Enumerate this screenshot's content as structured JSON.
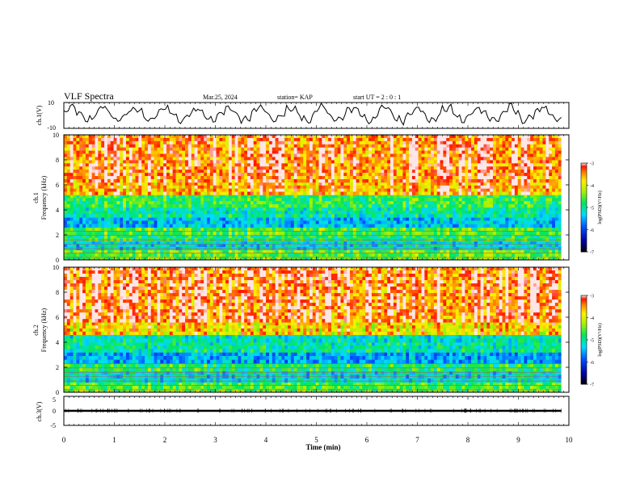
{
  "header": {
    "title": "VLF Spectra",
    "date": "Mar.25, 2024",
    "station": "station= KAP",
    "start": "start UT = 2 : 0 : 1"
  },
  "chart_data": [
    {
      "type": "line",
      "name": "ch1-waveform",
      "ylabel": "ch.1(V)",
      "ylim": [
        -10,
        10
      ],
      "y_ticks": [
        "10",
        "-10"
      ],
      "xlim": [
        0,
        10
      ],
      "x_end": 9.85,
      "x_samples": 230,
      "wave_params": {
        "base": 1.0,
        "amp1": 5.0,
        "period1": 0.62,
        "amp2": 2.0,
        "period2": 0.17,
        "noise": 2.2
      }
    },
    {
      "type": "heatmap",
      "name": "ch1-spectrogram",
      "ylabel_lines": [
        "ch.1",
        "Frequency (kHz)"
      ],
      "ylim": [
        0,
        10
      ],
      "y_ticks": [
        "0",
        "2",
        "4",
        "6",
        "8",
        "10"
      ],
      "xlim": [
        0,
        10
      ],
      "x_end": 9.85,
      "colorbar": {
        "label": "log(PSD)(V²/Hz)",
        "ticks": [
          "-3",
          "-4",
          "-5",
          "-6",
          "-7"
        ],
        "range": [
          -7,
          -3
        ]
      },
      "bands": [
        {
          "f0": 0.0,
          "f1": 0.8,
          "level": -4.6
        },
        {
          "f0": 0.8,
          "f1": 1.5,
          "level": -5.3
        },
        {
          "f0": 1.5,
          "f1": 2.0,
          "level": -4.9
        },
        {
          "f0": 2.0,
          "f1": 2.6,
          "level": -4.7
        },
        {
          "f0": 2.6,
          "f1": 3.4,
          "level": -5.5
        },
        {
          "f0": 3.4,
          "f1": 4.2,
          "level": -5.1
        },
        {
          "f0": 4.2,
          "f1": 5.2,
          "level": -4.8
        },
        {
          "f0": 5.2,
          "f1": 6.2,
          "level": -3.7
        },
        {
          "f0": 6.2,
          "f1": 10.0,
          "level": -3.5
        }
      ]
    },
    {
      "type": "heatmap",
      "name": "ch2-spectrogram",
      "ylabel_lines": [
        "ch.2",
        "Frequency (kHz)"
      ],
      "ylim": [
        0,
        10
      ],
      "y_ticks": [
        "0",
        "2",
        "4",
        "6",
        "8",
        "10"
      ],
      "xlim": [
        0,
        10
      ],
      "x_end": 9.85,
      "colorbar": {
        "label": "log(PSD)(V²/Hz)",
        "ticks": [
          "-3",
          "-4",
          "-5",
          "-6",
          "-7"
        ],
        "range": [
          -7,
          -3
        ]
      },
      "bands": [
        {
          "f0": 0.0,
          "f1": 0.8,
          "level": -4.7
        },
        {
          "f0": 0.8,
          "f1": 1.7,
          "level": -5.3
        },
        {
          "f0": 1.7,
          "f1": 2.3,
          "level": -4.9
        },
        {
          "f0": 2.3,
          "f1": 3.2,
          "level": -5.6
        },
        {
          "f0": 3.2,
          "f1": 4.0,
          "level": -5.1
        },
        {
          "f0": 4.0,
          "f1": 4.6,
          "level": -5.2
        },
        {
          "f0": 4.6,
          "f1": 5.6,
          "level": -4.0
        },
        {
          "f0": 5.6,
          "f1": 10.0,
          "level": -3.5
        }
      ]
    },
    {
      "type": "line",
      "name": "ch3-waveform",
      "ylabel": "ch.3(V)",
      "ylim": [
        -5,
        5
      ],
      "y_ticks": [
        "5",
        "0",
        "-5"
      ],
      "xlim": [
        0,
        10
      ],
      "x_end": 9.85,
      "level": 0.0,
      "band_half_height": 0.35
    }
  ],
  "xaxis": {
    "label": "Time (min)",
    "ticks": [
      "0",
      "1",
      "2",
      "3",
      "4",
      "5",
      "6",
      "7",
      "8",
      "9",
      "10"
    ]
  }
}
